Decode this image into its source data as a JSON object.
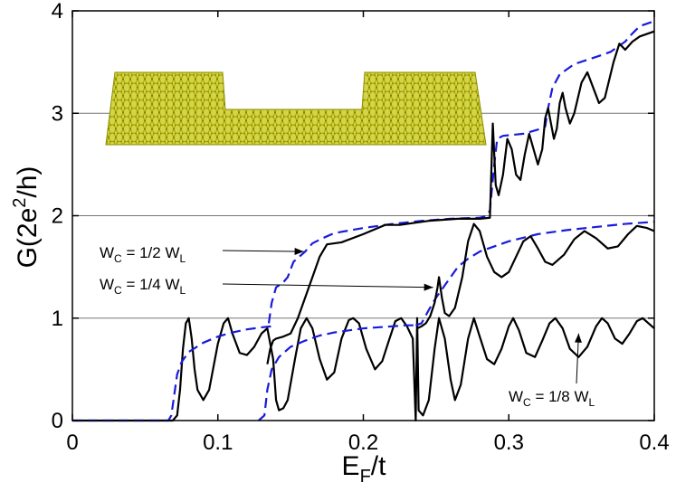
{
  "chart_data": {
    "type": "line",
    "title": "",
    "xlabel": "E_F/t",
    "ylabel": "G(2e^2/h)",
    "xlabel_parts": {
      "main": "E",
      "sub": "F",
      "rest": "/t"
    },
    "ylabel_parts": {
      "main": "G(2e",
      "sup": "2",
      "rest": "/h)"
    },
    "xlim": [
      0,
      0.4
    ],
    "ylim": [
      0,
      4
    ],
    "xticks": [
      0,
      0.1,
      0.2,
      0.3,
      0.4
    ],
    "xtick_labels": [
      "0",
      "0.1",
      "0.2",
      "0.3",
      "0.4"
    ],
    "yticks": [
      0,
      1,
      2,
      3,
      4
    ],
    "ytick_labels": [
      "0",
      "1",
      "2",
      "3",
      "4"
    ],
    "gridlines_y": [
      1,
      2,
      3
    ],
    "colors": {
      "solid": "#000000",
      "dashed": "#1a1adc",
      "inset_lattice": "#b5b500",
      "inset_edge": "#7a7a00"
    },
    "annotations": [
      {
        "id": "wc-half",
        "label": "W",
        "sub": "C",
        "mid": " = 1/2 W",
        "sub2": "L",
        "arrow_to": [
          0.159,
          1.65
        ]
      },
      {
        "id": "wc-quarter",
        "label": "W",
        "sub": "C",
        "mid": " = 1/4 W",
        "sub2": "L",
        "arrow_to": [
          0.248,
          1.3
        ]
      },
      {
        "id": "wc-eighth",
        "label": "W",
        "sub": "C",
        "mid": " = 1/8 W",
        "sub2": "L",
        "arrow_to": [
          0.348,
          0.85
        ]
      }
    ],
    "series": [
      {
        "name": "W_C = 1/8 W_L (solid)",
        "style": "solid",
        "color": "#000000",
        "points": [
          [
            0,
            0
          ],
          [
            0.069,
            0
          ],
          [
            0.072,
            0.05
          ],
          [
            0.074,
            0.3
          ],
          [
            0.076,
            0.7
          ],
          [
            0.078,
            0.95
          ],
          [
            0.08,
            1.0
          ],
          [
            0.082,
            0.8
          ],
          [
            0.084,
            0.5
          ],
          [
            0.086,
            0.3
          ],
          [
            0.09,
            0.2
          ],
          [
            0.094,
            0.3
          ],
          [
            0.1,
            0.75
          ],
          [
            0.104,
            0.95
          ],
          [
            0.107,
            1.0
          ],
          [
            0.11,
            0.85
          ],
          [
            0.115,
            0.66
          ],
          [
            0.12,
            0.64
          ],
          [
            0.125,
            0.72
          ],
          [
            0.13,
            0.85
          ],
          [
            0.134,
            0.9
          ],
          [
            0.136,
            0.75
          ],
          [
            0.138,
            0.6
          ],
          [
            0.14,
            0.2
          ],
          [
            0.142,
            0.1
          ],
          [
            0.145,
            0.12
          ],
          [
            0.148,
            0.2
          ],
          [
            0.153,
            0.6
          ],
          [
            0.157,
            0.9
          ],
          [
            0.161,
            1.0
          ],
          [
            0.165,
            0.9
          ],
          [
            0.17,
            0.6
          ],
          [
            0.175,
            0.4
          ],
          [
            0.18,
            0.47
          ],
          [
            0.185,
            0.8
          ],
          [
            0.19,
            0.98
          ],
          [
            0.193,
            1.0
          ],
          [
            0.197,
            0.95
          ],
          [
            0.202,
            0.7
          ],
          [
            0.208,
            0.5
          ],
          [
            0.213,
            0.58
          ],
          [
            0.218,
            0.8
          ],
          [
            0.222,
            0.97
          ],
          [
            0.226,
            1.0
          ],
          [
            0.23,
            0.92
          ],
          [
            0.234,
            0.8
          ],
          [
            0.236,
            0.0
          ],
          [
            0.237,
            1.0
          ],
          [
            0.238,
            0.1
          ],
          [
            0.241,
            0.05
          ],
          [
            0.245,
            0.2
          ],
          [
            0.249,
            0.7
          ],
          [
            0.252,
            1.0
          ],
          [
            0.256,
            0.8
          ],
          [
            0.26,
            0.4
          ],
          [
            0.263,
            0.2
          ],
          [
            0.267,
            0.35
          ],
          [
            0.272,
            0.8
          ],
          [
            0.276,
            1.0
          ],
          [
            0.28,
            0.82
          ],
          [
            0.285,
            0.6
          ],
          [
            0.29,
            0.55
          ],
          [
            0.295,
            0.7
          ],
          [
            0.3,
            0.92
          ],
          [
            0.303,
            1.0
          ],
          [
            0.307,
            0.88
          ],
          [
            0.312,
            0.66
          ],
          [
            0.318,
            0.62
          ],
          [
            0.323,
            0.78
          ],
          [
            0.328,
            0.95
          ],
          [
            0.332,
            1.0
          ],
          [
            0.337,
            0.9
          ],
          [
            0.342,
            0.7
          ],
          [
            0.348,
            0.62
          ],
          [
            0.354,
            0.72
          ],
          [
            0.36,
            0.92
          ],
          [
            0.364,
            1.0
          ],
          [
            0.368,
            0.95
          ],
          [
            0.373,
            0.8
          ],
          [
            0.378,
            0.75
          ],
          [
            0.383,
            0.85
          ],
          [
            0.388,
            0.97
          ],
          [
            0.392,
            1.0
          ],
          [
            0.396,
            0.95
          ],
          [
            0.4,
            0.9
          ]
        ]
      },
      {
        "name": "W_C = 1/8 W_L (dashed)",
        "style": "dashed",
        "color": "#1a1adc",
        "points": [
          [
            0,
            0
          ],
          [
            0.066,
            0
          ],
          [
            0.068,
            0.05
          ],
          [
            0.07,
            0.25
          ],
          [
            0.072,
            0.45
          ],
          [
            0.075,
            0.57
          ],
          [
            0.08,
            0.67
          ],
          [
            0.09,
            0.76
          ],
          [
            0.1,
            0.82
          ],
          [
            0.11,
            0.86
          ],
          [
            0.12,
            0.89
          ],
          [
            0.13,
            0.91
          ],
          [
            0.137,
            0.92
          ]
        ]
      },
      {
        "name": "W_C = 1/4 W_L (dashed)",
        "style": "dashed",
        "color": "#1a1adc",
        "points": [
          [
            0.128,
            0
          ],
          [
            0.132,
            0.05
          ],
          [
            0.134,
            0.3
          ],
          [
            0.137,
            0.5
          ],
          [
            0.142,
            0.62
          ],
          [
            0.15,
            0.72
          ],
          [
            0.16,
            0.78
          ],
          [
            0.17,
            0.83
          ],
          [
            0.18,
            0.86
          ],
          [
            0.19,
            0.88
          ],
          [
            0.2,
            0.9
          ],
          [
            0.21,
            0.91
          ],
          [
            0.22,
            0.92
          ],
          [
            0.23,
            0.93
          ],
          [
            0.236,
            0.93
          ]
        ]
      },
      {
        "name": "W_C = 1/2 W_L (dashed, upper)",
        "style": "dashed",
        "color": "#1a1adc",
        "points": [
          [
            0.135,
            0.95
          ],
          [
            0.137,
            1.15
          ],
          [
            0.14,
            1.3
          ],
          [
            0.145,
            1.35
          ],
          [
            0.148,
            1.4
          ],
          [
            0.152,
            1.55
          ],
          [
            0.16,
            1.65
          ],
          [
            0.165,
            1.73
          ],
          [
            0.172,
            1.78
          ],
          [
            0.18,
            1.83
          ],
          [
            0.2,
            1.88
          ],
          [
            0.22,
            1.92
          ],
          [
            0.24,
            1.95
          ],
          [
            0.26,
            1.97
          ],
          [
            0.28,
            1.98
          ],
          [
            0.285,
            2.0
          ],
          [
            0.287,
            2.05
          ],
          [
            0.29,
            2.5
          ],
          [
            0.292,
            2.75
          ],
          [
            0.296,
            2.78
          ],
          [
            0.31,
            2.8
          ],
          [
            0.32,
            2.84
          ],
          [
            0.325,
            2.87
          ],
          [
            0.327,
            3.05
          ],
          [
            0.33,
            3.25
          ],
          [
            0.335,
            3.38
          ],
          [
            0.345,
            3.48
          ],
          [
            0.36,
            3.55
          ],
          [
            0.37,
            3.6
          ],
          [
            0.376,
            3.66
          ],
          [
            0.38,
            3.7
          ],
          [
            0.385,
            3.78
          ],
          [
            0.39,
            3.85
          ],
          [
            0.4,
            3.9
          ]
        ]
      },
      {
        "name": "W_C = 1/4 W_L (dashed, upper)",
        "style": "dashed",
        "color": "#1a1adc",
        "points": [
          [
            0.236,
            0.93
          ],
          [
            0.24,
            0.95
          ],
          [
            0.245,
            1.08
          ],
          [
            0.25,
            1.2
          ],
          [
            0.255,
            1.3
          ],
          [
            0.26,
            1.4
          ],
          [
            0.265,
            1.5
          ],
          [
            0.272,
            1.58
          ],
          [
            0.28,
            1.65
          ],
          [
            0.3,
            1.75
          ],
          [
            0.32,
            1.82
          ],
          [
            0.34,
            1.86
          ],
          [
            0.36,
            1.89
          ],
          [
            0.38,
            1.92
          ],
          [
            0.4,
            1.94
          ]
        ]
      },
      {
        "name": "W_C = 1/2 W_L (solid)",
        "style": "solid",
        "color": "#000000",
        "points": [
          [
            0.134,
            0.55
          ],
          [
            0.136,
            0.7
          ],
          [
            0.138,
            0.78
          ],
          [
            0.14,
            0.8
          ],
          [
            0.145,
            0.82
          ],
          [
            0.15,
            0.85
          ],
          [
            0.155,
            1.0
          ],
          [
            0.16,
            1.2
          ],
          [
            0.165,
            1.4
          ],
          [
            0.17,
            1.6
          ],
          [
            0.175,
            1.72
          ],
          [
            0.185,
            1.74
          ],
          [
            0.2,
            1.82
          ],
          [
            0.21,
            1.88
          ],
          [
            0.215,
            1.91
          ],
          [
            0.225,
            1.91
          ],
          [
            0.235,
            1.93
          ],
          [
            0.245,
            1.95
          ],
          [
            0.255,
            1.96
          ],
          [
            0.265,
            1.97
          ],
          [
            0.28,
            1.97
          ],
          [
            0.287,
            1.98
          ],
          [
            0.289,
            2.9
          ],
          [
            0.291,
            2.3
          ],
          [
            0.293,
            2.2
          ],
          [
            0.296,
            2.4
          ],
          [
            0.299,
            2.75
          ],
          [
            0.302,
            2.65
          ],
          [
            0.305,
            2.4
          ],
          [
            0.308,
            2.35
          ],
          [
            0.311,
            2.6
          ],
          [
            0.314,
            2.8
          ],
          [
            0.317,
            2.65
          ],
          [
            0.32,
            2.5
          ],
          [
            0.323,
            2.65
          ],
          [
            0.325,
            2.95
          ],
          [
            0.327,
            3.05
          ],
          [
            0.329,
            2.9
          ],
          [
            0.331,
            2.75
          ],
          [
            0.333,
            2.85
          ],
          [
            0.335,
            3.1
          ],
          [
            0.337,
            3.2
          ],
          [
            0.339,
            3.05
          ],
          [
            0.342,
            2.9
          ],
          [
            0.345,
            3.0
          ],
          [
            0.35,
            3.3
          ],
          [
            0.354,
            3.4
          ],
          [
            0.358,
            3.25
          ],
          [
            0.362,
            3.1
          ],
          [
            0.366,
            3.15
          ],
          [
            0.372,
            3.5
          ],
          [
            0.376,
            3.68
          ],
          [
            0.38,
            3.62
          ],
          [
            0.385,
            3.7
          ],
          [
            0.39,
            3.75
          ],
          [
            0.4,
            3.8
          ]
        ]
      },
      {
        "name": "W_C = 1/4 W_L (solid)",
        "style": "solid",
        "color": "#000000",
        "points": [
          [
            0.237,
            0.9
          ],
          [
            0.24,
            0.92
          ],
          [
            0.243,
            0.95
          ],
          [
            0.246,
            1.02
          ],
          [
            0.249,
            1.15
          ],
          [
            0.251,
            1.3
          ],
          [
            0.252,
            1.4
          ],
          [
            0.254,
            1.2
          ],
          [
            0.256,
            1.05
          ],
          [
            0.259,
            1.02
          ],
          [
            0.263,
            1.1
          ],
          [
            0.268,
            1.4
          ],
          [
            0.272,
            1.75
          ],
          [
            0.276,
            1.92
          ],
          [
            0.28,
            1.85
          ],
          [
            0.285,
            1.6
          ],
          [
            0.29,
            1.45
          ],
          [
            0.295,
            1.4
          ],
          [
            0.3,
            1.45
          ],
          [
            0.305,
            1.6
          ],
          [
            0.31,
            1.75
          ],
          [
            0.315,
            1.8
          ],
          [
            0.32,
            1.68
          ],
          [
            0.325,
            1.55
          ],
          [
            0.33,
            1.52
          ],
          [
            0.338,
            1.62
          ],
          [
            0.345,
            1.77
          ],
          [
            0.352,
            1.85
          ],
          [
            0.36,
            1.78
          ],
          [
            0.368,
            1.68
          ],
          [
            0.375,
            1.7
          ],
          [
            0.382,
            1.82
          ],
          [
            0.388,
            1.9
          ],
          [
            0.395,
            1.88
          ],
          [
            0.4,
            1.85
          ]
        ]
      }
    ]
  }
}
